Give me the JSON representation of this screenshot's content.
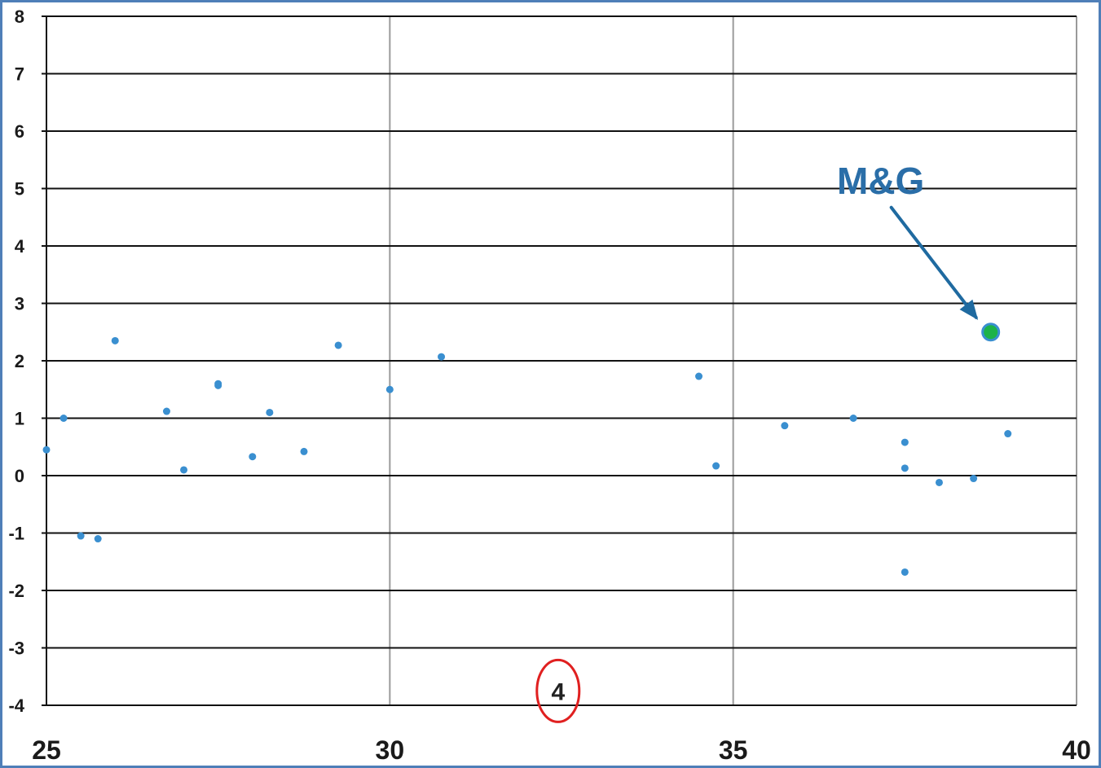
{
  "chart_data": {
    "type": "scatter",
    "xlim": [
      25,
      40
    ],
    "ylim": [
      -4,
      8
    ],
    "x_ticks": [
      25,
      30,
      35,
      40
    ],
    "y_ticks": [
      8,
      7,
      6,
      5,
      4,
      3,
      2,
      1,
      0,
      -1,
      -2,
      -3,
      -4
    ],
    "grid": "on",
    "legend": "none",
    "title": "",
    "xlabel": "",
    "ylabel": "",
    "series": [
      {
        "color": "#3a8fd0",
        "points": [
          {
            "x": 25.0,
            "y": 0.45
          },
          {
            "x": 25.25,
            "y": 1.0
          },
          {
            "x": 25.5,
            "y": -1.05
          },
          {
            "x": 25.75,
            "y": -1.1
          },
          {
            "x": 26.0,
            "y": 2.35
          },
          {
            "x": 26.75,
            "y": 1.12
          },
          {
            "x": 27.0,
            "y": 0.1
          },
          {
            "x": 27.5,
            "y": 1.6
          },
          {
            "x": 27.5,
            "y": 1.57
          },
          {
            "x": 28.0,
            "y": 0.33
          },
          {
            "x": 28.25,
            "y": 1.1
          },
          {
            "x": 28.75,
            "y": 0.42
          },
          {
            "x": 29.25,
            "y": 2.27
          },
          {
            "x": 30.0,
            "y": 1.5
          },
          {
            "x": 30.75,
            "y": 2.07
          },
          {
            "x": 34.5,
            "y": 1.73
          },
          {
            "x": 34.75,
            "y": 0.17
          },
          {
            "x": 35.75,
            "y": 0.87
          },
          {
            "x": 36.75,
            "y": 1.0
          },
          {
            "x": 37.5,
            "y": 0.58
          },
          {
            "x": 37.5,
            "y": 0.13
          },
          {
            "x": 37.5,
            "y": -1.68
          },
          {
            "x": 38.0,
            "y": -0.12
          },
          {
            "x": 38.5,
            "y": -0.05
          },
          {
            "x": 39.0,
            "y": 0.73
          }
        ]
      }
    ],
    "highlight": {
      "label": "M&G",
      "x": 38.75,
      "y": 2.5,
      "color": "#1db34a",
      "edge_color": "#3a8fd0",
      "arrow_color": "#1f6aa0"
    },
    "annotation_marker": {
      "text": "4",
      "x": 32.45,
      "y": -3.75,
      "circle_color": "#e02020"
    }
  },
  "colors": {
    "frame_border": "#4f7fb8",
    "hgrid": "#111111",
    "vgrid": "#9a9a9a"
  }
}
